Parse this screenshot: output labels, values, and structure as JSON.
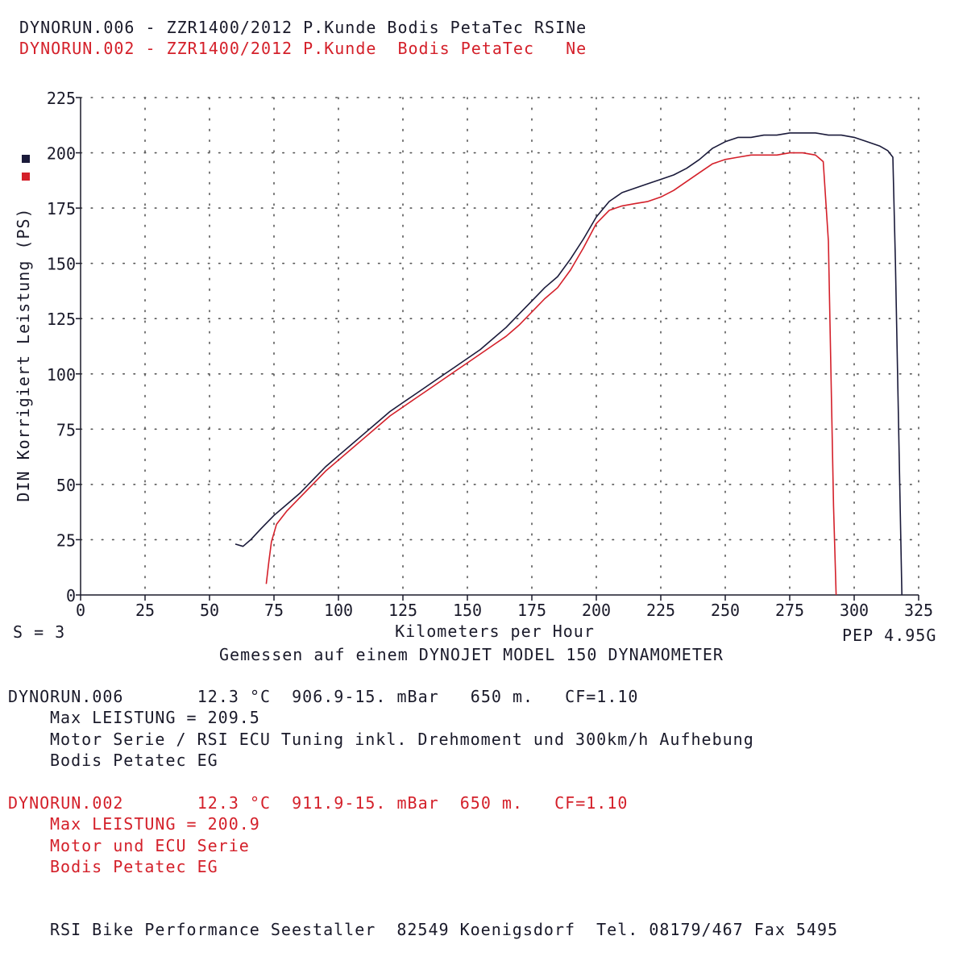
{
  "header": {
    "line1": "DYNORUN.006 - ZZR1400/2012 P.Kunde Bodis PetaTec RSINe",
    "line2": "DYNORUN.002 - ZZR1400/2012 P.Kunde  Bodis PetaTec   Ne"
  },
  "colors": {
    "run006": "#1a1a3a",
    "run002": "#d4202a",
    "grid": "#555555"
  },
  "chart_data": {
    "type": "line",
    "xlabel": "Kilometers per Hour",
    "ylabel": "DIN Korrigiert Leistung (PS)",
    "xlim": [
      0,
      325
    ],
    "ylim": [
      0,
      225
    ],
    "x_ticks": [
      "0",
      "25",
      "50",
      "75",
      "100",
      "125",
      "150",
      "175",
      "200",
      "225",
      "250",
      "275",
      "300",
      "325"
    ],
    "y_ticks": [
      "0",
      "25",
      "50",
      "75",
      "100",
      "125",
      "150",
      "175",
      "200",
      "225"
    ],
    "grid": true,
    "series": [
      {
        "name": "DYNORUN.006",
        "color": "#1a1a3a",
        "points": [
          [
            60,
            23
          ],
          [
            63,
            22
          ],
          [
            66,
            25
          ],
          [
            70,
            30
          ],
          [
            75,
            36
          ],
          [
            80,
            41
          ],
          [
            85,
            46
          ],
          [
            90,
            52
          ],
          [
            95,
            58
          ],
          [
            100,
            63
          ],
          [
            105,
            68
          ],
          [
            110,
            73
          ],
          [
            115,
            78
          ],
          [
            120,
            83
          ],
          [
            125,
            87
          ],
          [
            130,
            91
          ],
          [
            135,
            95
          ],
          [
            140,
            99
          ],
          [
            145,
            103
          ],
          [
            150,
            107
          ],
          [
            155,
            111
          ],
          [
            160,
            116
          ],
          [
            165,
            121
          ],
          [
            170,
            127
          ],
          [
            175,
            133
          ],
          [
            180,
            139
          ],
          [
            185,
            144
          ],
          [
            190,
            152
          ],
          [
            195,
            161
          ],
          [
            200,
            171
          ],
          [
            205,
            178
          ],
          [
            210,
            182
          ],
          [
            215,
            184
          ],
          [
            220,
            186
          ],
          [
            225,
            188
          ],
          [
            230,
            190
          ],
          [
            235,
            193
          ],
          [
            240,
            197
          ],
          [
            245,
            202
          ],
          [
            250,
            205
          ],
          [
            255,
            207
          ],
          [
            260,
            207
          ],
          [
            265,
            208
          ],
          [
            270,
            208
          ],
          [
            275,
            209
          ],
          [
            280,
            209
          ],
          [
            285,
            209
          ],
          [
            290,
            208
          ],
          [
            295,
            208
          ],
          [
            300,
            207
          ],
          [
            305,
            205
          ],
          [
            310,
            203
          ],
          [
            313,
            201
          ],
          [
            315,
            198
          ],
          [
            316,
            150
          ],
          [
            317,
            90
          ],
          [
            318,
            30
          ],
          [
            318.5,
            0
          ]
        ]
      },
      {
        "name": "DYNORUN.002",
        "color": "#d4202a",
        "points": [
          [
            72,
            5
          ],
          [
            73,
            15
          ],
          [
            74,
            24
          ],
          [
            76,
            32
          ],
          [
            80,
            38
          ],
          [
            85,
            44
          ],
          [
            90,
            50
          ],
          [
            95,
            56
          ],
          [
            100,
            61
          ],
          [
            105,
            66
          ],
          [
            110,
            71
          ],
          [
            115,
            76
          ],
          [
            120,
            81
          ],
          [
            125,
            85
          ],
          [
            130,
            89
          ],
          [
            135,
            93
          ],
          [
            140,
            97
          ],
          [
            145,
            101
          ],
          [
            150,
            105
          ],
          [
            155,
            109
          ],
          [
            160,
            113
          ],
          [
            165,
            117
          ],
          [
            170,
            122
          ],
          [
            175,
            128
          ],
          [
            180,
            134
          ],
          [
            185,
            139
          ],
          [
            190,
            147
          ],
          [
            195,
            157
          ],
          [
            200,
            168
          ],
          [
            205,
            174
          ],
          [
            210,
            176
          ],
          [
            215,
            177
          ],
          [
            220,
            178
          ],
          [
            225,
            180
          ],
          [
            230,
            183
          ],
          [
            235,
            187
          ],
          [
            240,
            191
          ],
          [
            245,
            195
          ],
          [
            250,
            197
          ],
          [
            255,
            198
          ],
          [
            260,
            199
          ],
          [
            265,
            199
          ],
          [
            270,
            199
          ],
          [
            275,
            200
          ],
          [
            280,
            200
          ],
          [
            285,
            199
          ],
          [
            288,
            196
          ],
          [
            290,
            160
          ],
          [
            291,
            100
          ],
          [
            292,
            40
          ],
          [
            293,
            0
          ]
        ]
      }
    ]
  },
  "chart_labels": {
    "s_label": "S = 3",
    "pep_label": "PEP 4.95G",
    "footer": "Gemessen auf einem DYNOJET MODEL 150 DYNAMOMETER"
  },
  "run006": {
    "line1": "DYNORUN.006       12.3 °C  906.9-15. mBar   650 m.   CF=1.10",
    "line2": "Max LEISTUNG = 209.5",
    "line3": "Motor Serie / RSI ECU Tuning inkl. Drehmoment und 300km/h Aufhebung",
    "line4": "Bodis Petatec EG"
  },
  "run002": {
    "line1": "DYNORUN.002       12.3 °C  911.9-15. mBar  650 m.   CF=1.10",
    "line2": "Max LEISTUNG = 200.9",
    "line3": "Motor und ECU Serie",
    "line4": "Bodis Petatec EG"
  },
  "company": "RSI Bike Performance Seestaller  82549 Koenigsdorf  Tel. 08179/467 Fax 5495"
}
